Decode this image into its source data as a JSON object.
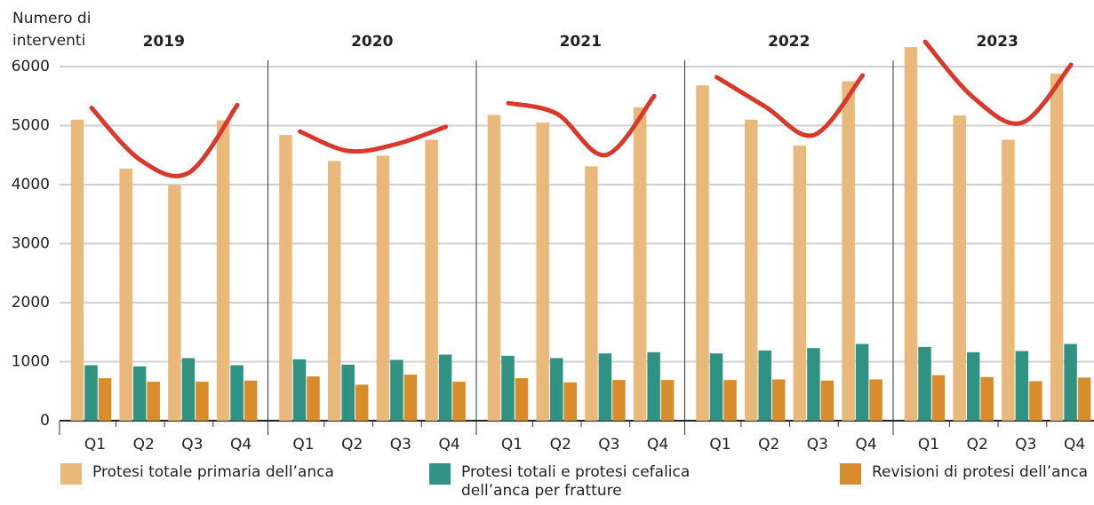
{
  "chart_data": {
    "type": "bar",
    "y_label": [
      "Numero di",
      "interventi"
    ],
    "groups": [
      "2019",
      "2020",
      "2021",
      "2022",
      "2023"
    ],
    "categories": [
      "Q1",
      "Q2",
      "Q3",
      "Q4",
      "Q1",
      "Q2",
      "Q3",
      "Q4",
      "Q1",
      "Q2",
      "Q3",
      "Q4",
      "Q1",
      "Q2",
      "Q3",
      "Q4",
      "Q1",
      "Q2",
      "Q3",
      "Q4"
    ],
    "series": [
      {
        "name": "Protesi totale primaria dell’anca",
        "color": "#e9b97b",
        "values": [
          5100,
          4270,
          3990,
          5090,
          4840,
          4400,
          4490,
          4760,
          5180,
          5050,
          4310,
          5310,
          5680,
          5100,
          4660,
          5750,
          6330,
          5170,
          4760,
          5880
        ]
      },
      {
        "name": "Protesi totali e protesi cefalica dell’anca per fratture",
        "color": "#2f9282",
        "values": [
          940,
          920,
          1060,
          940,
          1040,
          950,
          1030,
          1120,
          1100,
          1060,
          1140,
          1160,
          1140,
          1190,
          1230,
          1300,
          1250,
          1160,
          1180,
          1300
        ]
      },
      {
        "name": "Revisioni di protesi dell’anca",
        "color": "#d98c2c",
        "values": [
          720,
          660,
          660,
          680,
          750,
          610,
          780,
          660,
          720,
          650,
          690,
          690,
          690,
          700,
          680,
          700,
          770,
          740,
          670,
          730
        ]
      },
      {
        "type": "line",
        "color": "#d7392a",
        "values": [
          5300,
          4420,
          4200,
          5350,
          4900,
          4570,
          4690,
          4980,
          5380,
          5200,
          4500,
          5500,
          5820,
          5320,
          4840,
          5850,
          6420,
          5470,
          5050,
          6030
        ]
      }
    ],
    "ylim": [
      0,
      6000
    ],
    "yticks": [
      0,
      1000,
      2000,
      3000,
      4000,
      5000,
      6000
    ],
    "grid": true
  }
}
